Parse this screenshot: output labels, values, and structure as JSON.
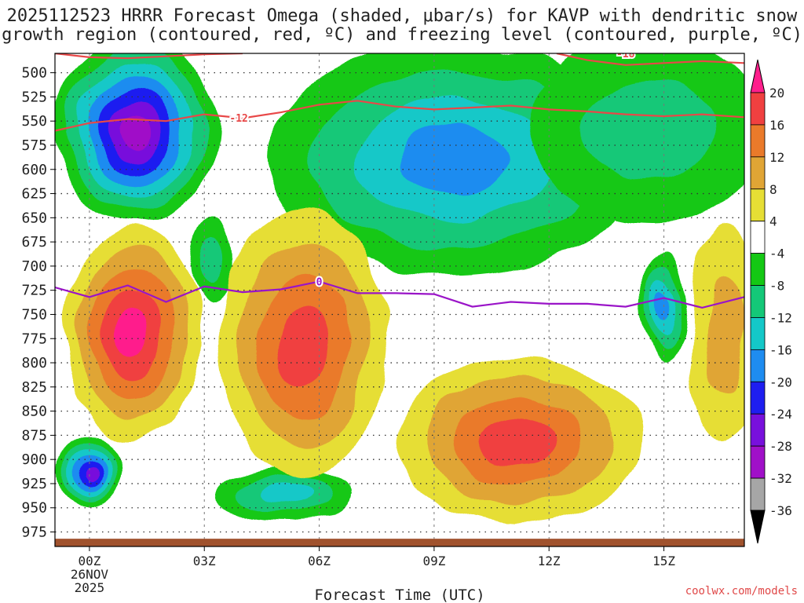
{
  "title": {
    "line1": "2025112523 HRRR Forecast Omega (shaded, μbar/s) for KAVP with dendritic snow",
    "line2": "growth region (contoured, red, ºC) and freezing level (contoured, purple, ºC)"
  },
  "credit": "coolwx.com/models",
  "chart_data": {
    "type": "heatmap",
    "title": "2025112523 HRRR Forecast Omega (shaded, μbar/s) for KAVP with dendritic snow growth region (contoured, red, ºC) and freezing level (contoured, purple, ºC)",
    "xlabel": "Forecast Time (UTC)",
    "ylabel": "",
    "x_hours": [
      -0.9,
      17.1
    ],
    "ylim": [
      480,
      990
    ],
    "x_ticks": [
      {
        "hour": 0,
        "label": "00Z",
        "sub1": "26NOV",
        "sub2": "2025"
      },
      {
        "hour": 3,
        "label": "03Z"
      },
      {
        "hour": 6,
        "label": "06Z"
      },
      {
        "hour": 9,
        "label": "09Z"
      },
      {
        "hour": 12,
        "label": "12Z"
      },
      {
        "hour": 15,
        "label": "15Z"
      }
    ],
    "y_ticks": [
      500,
      525,
      550,
      575,
      600,
      625,
      650,
      675,
      700,
      725,
      750,
      775,
      800,
      825,
      850,
      875,
      900,
      925,
      950,
      975
    ],
    "colorbar": {
      "levels": [
        20,
        16,
        12,
        8,
        4,
        -4,
        -8,
        -12,
        -16,
        -20,
        -24,
        -28,
        -32,
        -36
      ],
      "colors": [
        "#ff1f8c",
        "#f04040",
        "#ea7a2a",
        "#e0a535",
        "#e6de35",
        "#ffffff",
        "#14c814",
        "#14c878",
        "#14c8c8",
        "#1e8cf0",
        "#1e1ef0",
        "#7810dc",
        "#a010c8",
        "#a6a6a6",
        "#000000"
      ]
    },
    "omega_blobs": [
      {
        "name": "upper-left-ascent",
        "x": 1.2,
        "y": 560,
        "rx": 2.1,
        "ry": 95,
        "levels": [
          -4,
          -8,
          -12,
          -16,
          -20,
          -24,
          -28
        ]
      },
      {
        "name": "upper-mid-ascent",
        "x": 9.5,
        "y": 590,
        "rx": 4.8,
        "ry": 120,
        "levels": [
          -4,
          -8,
          -12,
          -16
        ]
      },
      {
        "name": "upper-right-ascent",
        "x": 14.6,
        "y": 560,
        "rx": 3.1,
        "ry": 95,
        "levels": [
          -4,
          -8
        ]
      },
      {
        "name": "small-upper-ascent",
        "x": 3.2,
        "y": 695,
        "rx": 0.55,
        "ry": 45,
        "levels": [
          -4,
          -8
        ]
      },
      {
        "name": "right-column-ascent",
        "x": 15.0,
        "y": 740,
        "rx": 0.55,
        "ry": 55,
        "levels": [
          -4,
          -8,
          -12,
          -16
        ]
      },
      {
        "name": "lower-left-ascent",
        "x": 0.0,
        "y": 912,
        "rx": 0.85,
        "ry": 40,
        "levels": [
          -4,
          -8,
          -12,
          -16,
          -20,
          -24
        ]
      },
      {
        "name": "lower-mid-ascent",
        "x": 5.1,
        "y": 937,
        "rx": 1.9,
        "ry": 27,
        "levels": [
          -4,
          -8,
          -12
        ]
      },
      {
        "name": "left-descent",
        "x": 1.1,
        "y": 770,
        "rx": 1.8,
        "ry": 110,
        "levels": [
          4,
          8,
          12,
          16,
          20
        ]
      },
      {
        "name": "center-descent",
        "x": 5.6,
        "y": 780,
        "rx": 2.2,
        "ry": 140,
        "levels": [
          4,
          8,
          12,
          16
        ]
      },
      {
        "name": "lower-right-descent",
        "x": 11.2,
        "y": 880,
        "rx": 3.2,
        "ry": 85,
        "levels": [
          4,
          8,
          12,
          16
        ]
      },
      {
        "name": "far-right-descent",
        "x": 16.6,
        "y": 770,
        "rx": 0.9,
        "ry": 110,
        "levels": [
          4,
          8
        ]
      }
    ],
    "dendritic_contours": [
      {
        "label": "-12",
        "label_hour": 3.9,
        "points": [
          [
            -0.9,
            560
          ],
          [
            0,
            552
          ],
          [
            1,
            548
          ],
          [
            2,
            550
          ],
          [
            3,
            543
          ],
          [
            4,
            547
          ],
          [
            5,
            541
          ],
          [
            6,
            533
          ],
          [
            7,
            529
          ],
          [
            8,
            535
          ],
          [
            9,
            538
          ],
          [
            10,
            536
          ],
          [
            11,
            534
          ],
          [
            12,
            538
          ],
          [
            13,
            540
          ],
          [
            14,
            543
          ],
          [
            15,
            545
          ],
          [
            16,
            543
          ],
          [
            17.1,
            546
          ]
        ]
      },
      {
        "label": "-18",
        "label_hour": 14.0,
        "points": [
          [
            -0.9,
            480
          ],
          [
            0,
            484
          ],
          [
            1,
            485
          ],
          [
            2,
            483
          ],
          [
            3,
            481
          ],
          [
            4,
            480
          ]
        ]
      },
      {
        "label": "",
        "label_hour": null,
        "points": [
          [
            12.2,
            480
          ],
          [
            13,
            487
          ],
          [
            14,
            492
          ],
          [
            15,
            490
          ],
          [
            16,
            488
          ],
          [
            17.1,
            490
          ]
        ]
      }
    ],
    "freezing_level": {
      "label": "0",
      "label_hour": 6.0,
      "points": [
        [
          -0.9,
          722
        ],
        [
          0,
          732
        ],
        [
          1,
          720
        ],
        [
          2,
          737
        ],
        [
          3,
          721
        ],
        [
          4,
          727
        ],
        [
          5,
          724
        ],
        [
          6,
          716
        ],
        [
          7,
          728
        ],
        [
          8,
          728
        ],
        [
          9,
          729
        ],
        [
          10,
          742
        ],
        [
          11,
          737
        ],
        [
          12,
          739
        ],
        [
          13,
          739
        ],
        [
          14,
          742
        ],
        [
          15,
          733
        ],
        [
          16,
          743
        ],
        [
          17.1,
          732
        ]
      ]
    },
    "terrain_pressure": 982
  }
}
